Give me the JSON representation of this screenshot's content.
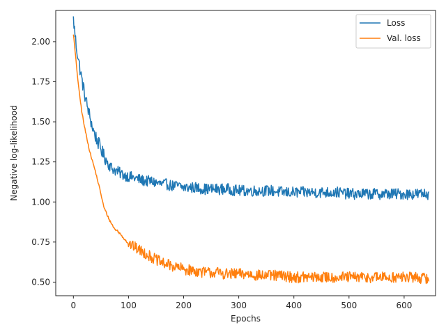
{
  "chart_data": {
    "type": "line",
    "title": "",
    "xlabel": "Epochs",
    "ylabel": "Negative log-likelihood",
    "xlim": [
      -32,
      657
    ],
    "ylim": [
      0.415,
      2.195
    ],
    "xticks": [
      0,
      100,
      200,
      300,
      400,
      500,
      600
    ],
    "xtick_labels": [
      "0",
      "100",
      "200",
      "300",
      "400",
      "500",
      "600"
    ],
    "yticks": [
      0.5,
      0.75,
      1.0,
      1.25,
      1.5,
      1.75,
      2.0
    ],
    "ytick_labels": [
      "0.50",
      "0.75",
      "1.00",
      "1.25",
      "1.50",
      "1.75",
      "2.00"
    ],
    "grid": false,
    "legend_position": "top-right",
    "series": [
      {
        "name": "Loss",
        "color": "#1f77b4",
        "x": [
          0,
          5,
          10,
          15,
          20,
          25,
          30,
          35,
          40,
          45,
          50,
          55,
          60,
          65,
          70,
          75,
          80,
          90,
          100,
          110,
          120,
          130,
          140,
          150,
          160,
          170,
          180,
          190,
          200,
          220,
          240,
          260,
          280,
          300,
          320,
          340,
          360,
          380,
          400,
          420,
          440,
          460,
          480,
          500,
          520,
          540,
          560,
          580,
          600,
          620,
          645
        ],
        "y": [
          2.14,
          1.98,
          1.87,
          1.77,
          1.68,
          1.6,
          1.53,
          1.46,
          1.41,
          1.37,
          1.33,
          1.29,
          1.26,
          1.23,
          1.21,
          1.2,
          1.19,
          1.17,
          1.16,
          1.15,
          1.14,
          1.13,
          1.13,
          1.12,
          1.11,
          1.11,
          1.1,
          1.1,
          1.09,
          1.09,
          1.08,
          1.08,
          1.08,
          1.07,
          1.07,
          1.07,
          1.07,
          1.06,
          1.06,
          1.06,
          1.06,
          1.06,
          1.06,
          1.05,
          1.05,
          1.05,
          1.05,
          1.05,
          1.05,
          1.05,
          1.05
        ],
        "noise": 0.035
      },
      {
        "name": "Val. loss",
        "color": "#ff7f0e",
        "x": [
          0,
          5,
          10,
          15,
          20,
          25,
          30,
          35,
          40,
          45,
          50,
          55,
          60,
          65,
          70,
          75,
          80,
          85,
          90,
          95,
          100,
          110,
          120,
          130,
          140,
          150,
          160,
          170,
          180,
          190,
          200,
          220,
          240,
          260,
          280,
          300,
          320,
          340,
          360,
          380,
          400,
          420,
          440,
          460,
          480,
          500,
          520,
          540,
          560,
          580,
          600,
          620,
          645
        ],
        "y": [
          2.05,
          1.87,
          1.7,
          1.57,
          1.47,
          1.39,
          1.31,
          1.25,
          1.19,
          1.12,
          1.05,
          0.97,
          0.93,
          0.89,
          0.86,
          0.83,
          0.82,
          0.8,
          0.78,
          0.76,
          0.74,
          0.72,
          0.7,
          0.68,
          0.66,
          0.64,
          0.62,
          0.61,
          0.6,
          0.59,
          0.58,
          0.57,
          0.56,
          0.56,
          0.55,
          0.55,
          0.55,
          0.54,
          0.54,
          0.54,
          0.53,
          0.53,
          0.53,
          0.53,
          0.53,
          0.53,
          0.53,
          0.53,
          0.53,
          0.53,
          0.53,
          0.53,
          0.52
        ],
        "noise": 0.035
      }
    ]
  }
}
